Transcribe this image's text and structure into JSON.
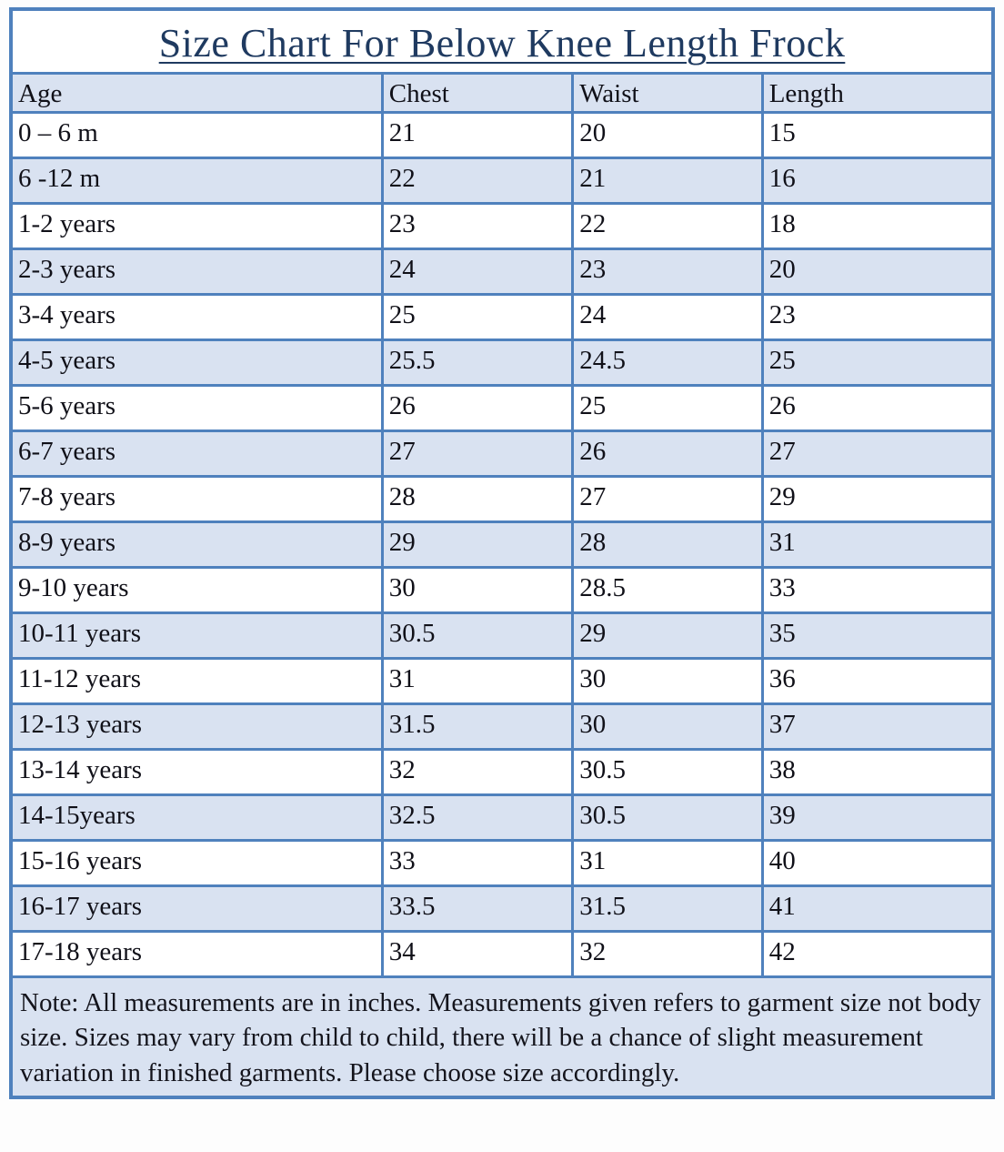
{
  "title": "Size Chart For Below Knee Length Frock",
  "table": {
    "headers": [
      "Age",
      "Chest",
      "Waist",
      "Length"
    ],
    "rows": [
      {
        "age": "0 – 6 m",
        "chest": "21",
        "waist": "20",
        "length": "15"
      },
      {
        "age": "6 -12 m",
        "chest": "22",
        "waist": "21",
        "length": "16"
      },
      {
        "age": "1-2 years",
        "chest": "23",
        "waist": "22",
        "length": "18"
      },
      {
        "age": "2-3 years",
        "chest": "24",
        "waist": "23",
        "length": "20"
      },
      {
        "age": "3-4 years",
        "chest": "25",
        "waist": "24",
        "length": "23"
      },
      {
        "age": "4-5 years",
        "chest": "25.5",
        "waist": "24.5",
        "length": "25"
      },
      {
        "age": "5-6 years",
        "chest": "26",
        "waist": "25",
        "length": "26"
      },
      {
        "age": "6-7 years",
        "chest": "27",
        "waist": "26",
        "length": "27"
      },
      {
        "age": "7-8 years",
        "chest": "28",
        "waist": "27",
        "length": "29"
      },
      {
        "age": "8-9 years",
        "chest": "29",
        "waist": "28",
        "length": "31"
      },
      {
        "age": "9-10 years",
        "chest": "30",
        "waist": "28.5",
        "length": "33"
      },
      {
        "age": "10-11 years",
        "chest": "30.5",
        "waist": "29",
        "length": "35"
      },
      {
        "age": "11-12 years",
        "chest": "31",
        "waist": "30",
        "length": "36"
      },
      {
        "age": "12-13 years",
        "chest": "31.5",
        "waist": "30",
        "length": "37"
      },
      {
        "age": "13-14 years",
        "chest": "32",
        "waist": "30.5",
        "length": "38"
      },
      {
        "age": "14-15years",
        "chest": "32.5",
        "waist": "30.5",
        "length": "39"
      },
      {
        "age": "15-16 years",
        "chest": "33",
        "waist": "31",
        "length": "40"
      },
      {
        "age": "16-17 years",
        "chest": "33.5",
        "waist": "31.5",
        "length": "41"
      },
      {
        "age": "17-18 years",
        "chest": "34",
        "waist": "32",
        "length": "42"
      }
    ]
  },
  "note": "Note: All measurements are in inches. Measurements given refers to garment size not body size. Sizes may vary from child to child, there will be a chance of slight measurement variation in finished garments. Please choose size accordingly.",
  "colors": {
    "band_fill": "#d9e2f1",
    "border": "#4f81bd",
    "title_text": "#1f3a60",
    "body_text": "#101018"
  }
}
